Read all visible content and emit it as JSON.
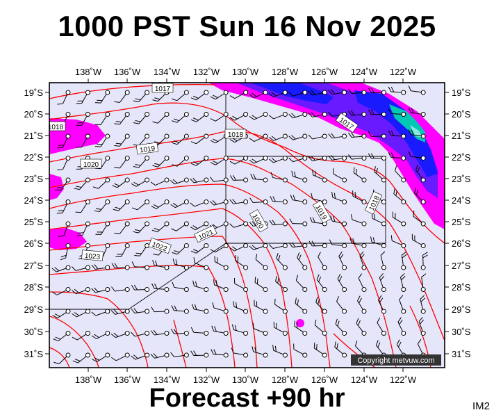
{
  "header": {
    "title": "1000 PST Sun 16 Nov 2025"
  },
  "footer": {
    "forecast": "Forecast +90 hr",
    "corner": "IM2"
  },
  "map": {
    "x_ticks": [
      "138˚W",
      "136˚W",
      "134˚W",
      "132˚W",
      "130˚W",
      "128˚W",
      "126˚W",
      "124˚W",
      "122˚W"
    ],
    "y_ticks": [
      "19˚S",
      "20˚S",
      "21˚S",
      "22˚S",
      "23˚S",
      "24˚S",
      "25˚S",
      "26˚S",
      "27˚S",
      "28˚S",
      "29˚S",
      "30˚S",
      "31˚S"
    ],
    "isobar_labels": [
      "1017",
      "1018",
      "1019",
      "1020",
      "1021",
      "1022",
      "1023",
      "1018",
      "1017",
      "1018",
      "1019",
      "1020"
    ],
    "copyright": "Copyright metvuw.com",
    "colors": {
      "background": "#e6e6fa",
      "isobar": "#ff0000",
      "rain_light": "#ff00ff",
      "rain_mid": "#6a1aff",
      "rain_heavy": "#1a1aff",
      "rain_extreme": "#00c8b4"
    }
  }
}
